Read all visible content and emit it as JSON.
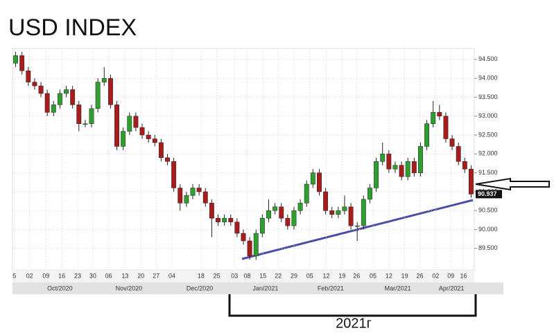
{
  "chart_data": {
    "type": "candlestick",
    "title": "USD INDEX",
    "annotation": "2021г",
    "open": [
      94.4,
      94.6,
      94.2,
      93.9,
      93.8,
      93.6,
      93.1,
      93.3,
      93.6,
      93.7,
      93.3,
      92.8,
      92.8,
      93.2,
      93.9,
      94.0,
      93.3,
      92.2,
      92.6,
      93.0,
      92.7,
      92.5,
      92.4,
      92.3,
      91.9,
      91.8,
      91.1,
      90.7,
      90.9,
      91.1,
      91.0,
      90.7,
      90.3,
      90.2,
      90.3,
      90.2,
      89.9,
      89.7,
      89.3,
      89.9,
      90.3,
      90.5,
      90.6,
      90.3,
      90.1,
      90.5,
      90.7,
      91.2,
      91.5,
      91.0,
      90.5,
      90.4,
      90.5,
      90.6,
      90.1,
      90.1,
      90.8,
      91.1,
      91.8,
      92.0,
      91.6,
      91.7,
      91.4,
      91.8,
      91.5,
      92.2,
      92.8,
      93.1,
      93.0,
      92.4,
      92.2,
      91.8,
      91.6
    ],
    "high": [
      94.7,
      94.7,
      94.3,
      94.0,
      93.9,
      93.7,
      93.4,
      93.7,
      93.8,
      93.8,
      93.4,
      92.9,
      93.3,
      94.0,
      94.3,
      94.1,
      93.4,
      92.7,
      93.1,
      93.1,
      92.8,
      92.6,
      92.5,
      92.4,
      92.0,
      91.9,
      91.2,
      91.0,
      91.2,
      91.2,
      91.1,
      90.8,
      90.4,
      90.4,
      90.4,
      90.3,
      90.0,
      89.8,
      90.0,
      90.4,
      90.8,
      90.7,
      90.7,
      90.4,
      90.6,
      90.8,
      91.3,
      91.6,
      91.6,
      91.1,
      90.6,
      90.6,
      90.9,
      90.7,
      90.2,
      90.9,
      91.2,
      91.9,
      92.3,
      92.1,
      91.8,
      91.8,
      91.9,
      91.9,
      92.3,
      92.9,
      93.4,
      93.3,
      93.1,
      92.5,
      92.3,
      91.9,
      91.7
    ],
    "low": [
      94.3,
      94.1,
      93.8,
      93.7,
      93.5,
      93.0,
      93.0,
      93.2,
      93.5,
      93.2,
      92.6,
      92.7,
      92.7,
      93.1,
      93.8,
      93.2,
      92.1,
      92.1,
      92.5,
      92.6,
      92.4,
      92.3,
      92.2,
      91.8,
      91.7,
      91.0,
      90.5,
      90.6,
      90.8,
      90.9,
      90.6,
      89.8,
      90.1,
      90.1,
      90.1,
      89.8,
      89.6,
      89.2,
      89.2,
      89.8,
      90.2,
      90.4,
      90.2,
      90.0,
      90.0,
      90.4,
      90.6,
      91.1,
      90.9,
      90.4,
      90.3,
      90.3,
      90.4,
      90.0,
      89.7,
      90.0,
      90.7,
      91.0,
      91.7,
      91.5,
      91.5,
      91.3,
      91.3,
      91.4,
      91.4,
      92.1,
      92.7,
      92.9,
      92.3,
      92.1,
      91.7,
      91.5,
      90.84
    ],
    "close": [
      94.6,
      94.2,
      93.9,
      93.8,
      93.6,
      93.1,
      93.3,
      93.6,
      93.7,
      93.3,
      92.8,
      92.8,
      93.2,
      93.9,
      94.0,
      93.3,
      92.2,
      92.6,
      93.0,
      92.7,
      92.5,
      92.4,
      92.3,
      91.9,
      91.8,
      91.1,
      90.7,
      90.9,
      91.1,
      91.0,
      90.7,
      90.3,
      90.2,
      90.3,
      90.2,
      89.9,
      89.7,
      89.3,
      89.9,
      90.3,
      90.5,
      90.6,
      90.3,
      90.1,
      90.5,
      90.7,
      91.2,
      91.5,
      91.0,
      90.5,
      90.4,
      90.5,
      90.6,
      90.1,
      90.1,
      90.8,
      91.1,
      91.8,
      92.0,
      91.6,
      91.7,
      91.4,
      91.8,
      91.5,
      92.2,
      92.8,
      93.1,
      93.0,
      92.4,
      92.2,
      91.8,
      91.6,
      90.937
    ],
    "color_up": "#2e9e2e",
    "color_down": "#a81c1c",
    "grid": true,
    "xlim": [
      -0.5,
      72.5
    ],
    "ylim": [
      88.93,
      94.79
    ],
    "yticks": [
      {
        "value": 89.5,
        "label": "89.500"
      },
      {
        "value": 90,
        "label": "90.000"
      },
      {
        "value": 90.5,
        "label": "90.500"
      },
      {
        "value": 91,
        "label": "91.000"
      },
      {
        "value": 91.5,
        "label": "91.500"
      },
      {
        "value": 92,
        "label": "92.000"
      },
      {
        "value": 92.5,
        "label": "92.500"
      },
      {
        "value": 93,
        "label": "93.000"
      },
      {
        "value": 93.5,
        "label": "93.500"
      },
      {
        "value": 94,
        "label": "94.000"
      },
      {
        "value": 94.5,
        "label": "94.500"
      }
    ],
    "xticks": [
      {
        "value": -0.2,
        "label": "5"
      },
      {
        "value": 2.2,
        "label": "02"
      },
      {
        "value": 4.8,
        "label": "09"
      },
      {
        "value": 7.3,
        "label": "16"
      },
      {
        "value": 9.8,
        "label": "23"
      },
      {
        "value": 12.2,
        "label": "30"
      },
      {
        "value": 14.7,
        "label": "06"
      },
      {
        "value": 17.3,
        "label": "13"
      },
      {
        "value": 19.8,
        "label": "20"
      },
      {
        "value": 22.2,
        "label": "27"
      },
      {
        "value": 24.7,
        "label": "04"
      },
      {
        "value": 29.3,
        "label": "18"
      },
      {
        "value": 31.8,
        "label": "25"
      },
      {
        "value": 34.6,
        "label": "03"
      },
      {
        "value": 36.6,
        "label": "08"
      },
      {
        "value": 39.1,
        "label": "15"
      },
      {
        "value": 41.5,
        "label": "22"
      },
      {
        "value": 44.0,
        "label": "29"
      },
      {
        "value": 46.5,
        "label": "05"
      },
      {
        "value": 49.1,
        "label": "12"
      },
      {
        "value": 51.6,
        "label": "19"
      },
      {
        "value": 53.9,
        "label": "26"
      },
      {
        "value": 56.5,
        "label": "05"
      },
      {
        "value": 59.0,
        "label": "12"
      },
      {
        "value": 61.5,
        "label": "19"
      },
      {
        "value": 63.9,
        "label": "26"
      },
      {
        "value": 66.4,
        "label": "02"
      },
      {
        "value": 68.8,
        "label": "09"
      },
      {
        "value": 70.8,
        "label": "16"
      }
    ],
    "month_labels": [
      {
        "value": 7.0,
        "label": "Oct/2020"
      },
      {
        "value": 17.9,
        "label": "Nov/2020"
      },
      {
        "value": 29.1,
        "label": "Dec/2020"
      },
      {
        "value": 39.5,
        "label": "Jan/2021"
      },
      {
        "value": 49.8,
        "label": "Feb/2021"
      },
      {
        "value": 60.4,
        "label": "Mar/2021"
      },
      {
        "value": 68.9,
        "label": "Apr/2021"
      }
    ]
  }
}
